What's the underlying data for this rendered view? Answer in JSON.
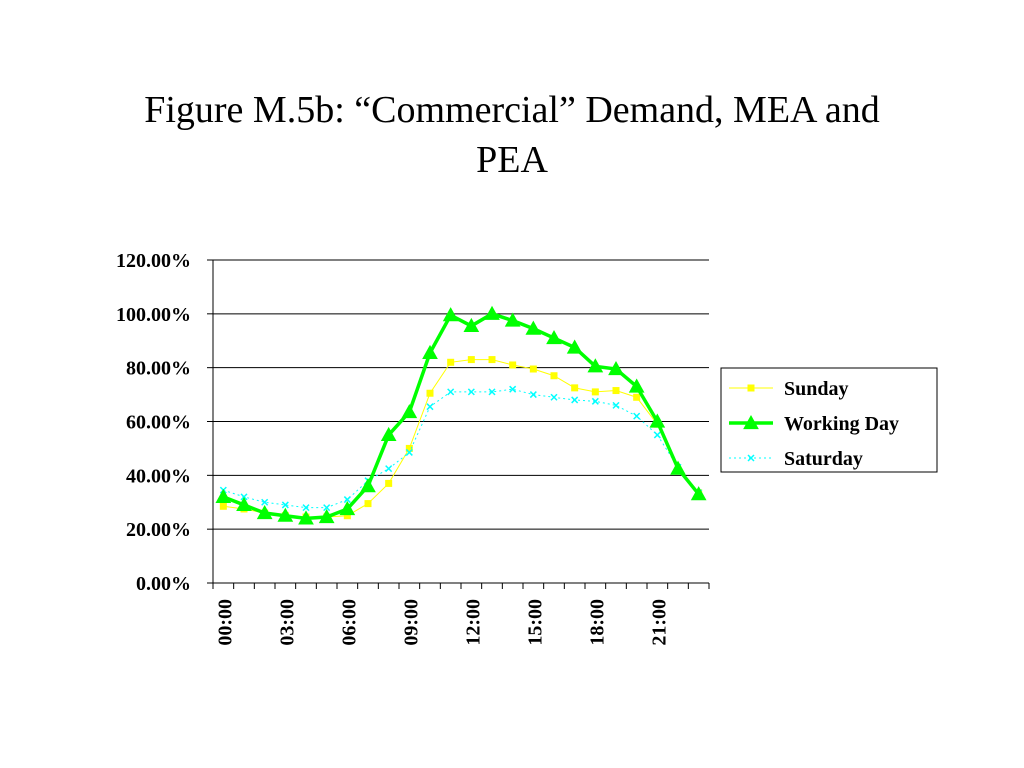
{
  "slide": {
    "title_line1": "Figure M.5b: “Commercial” Demand, MEA and",
    "title_line2": "PEA"
  },
  "chart_data": {
    "type": "line",
    "title": "Figure M.5b: “Commercial” Demand, MEA and PEA",
    "xlabel": "",
    "ylabel": "",
    "ylim": [
      0,
      120
    ],
    "y_ticks": [
      0,
      20,
      40,
      60,
      80,
      100,
      120
    ],
    "y_tick_labels": [
      "0.00%",
      "20.00%",
      "40.00%",
      "60.00%",
      "80.00%",
      "100.00%",
      "120.00%"
    ],
    "x": [
      0,
      1,
      2,
      3,
      4,
      5,
      6,
      7,
      8,
      9,
      10,
      11,
      12,
      13,
      14,
      15,
      16,
      17,
      18,
      19,
      20,
      21,
      22,
      23
    ],
    "x_tick_labels": [
      "00:00",
      "03:00",
      "06:00",
      "09:00",
      "12:00",
      "15:00",
      "18:00",
      "21:00"
    ],
    "x_tick_label_positions": [
      0,
      3,
      6,
      9,
      12,
      15,
      18,
      21
    ],
    "grid": "horizontal",
    "legend_position": "right",
    "series": [
      {
        "name": "Sunday",
        "color": "#FFFF00",
        "marker": "square",
        "values": [
          28.5,
          27.5,
          26.0,
          25.0,
          24.5,
          24.5,
          25.0,
          29.5,
          37.0,
          50.0,
          70.5,
          82.0,
          83.0,
          83.0,
          81.0,
          79.5,
          77.0,
          72.5,
          71.0,
          71.5,
          69.0,
          59.0,
          42.0,
          33.5
        ]
      },
      {
        "name": "Working Day",
        "color": "#00FF00",
        "marker": "triangle",
        "values": [
          32.0,
          29.0,
          26.0,
          25.0,
          24.0,
          24.5,
          27.5,
          36.0,
          55.0,
          63.5,
          85.5,
          99.5,
          95.5,
          100.0,
          97.5,
          94.5,
          91.0,
          87.5,
          80.5,
          79.5,
          73.0,
          60.0,
          42.5,
          33.0
        ]
      },
      {
        "name": "Saturday",
        "color": "#00FFFF",
        "marker": "x",
        "values": [
          34.5,
          32.0,
          30.0,
          29.0,
          28.0,
          28.0,
          31.0,
          38.0,
          42.5,
          48.5,
          65.5,
          71.0,
          71.0,
          71.0,
          72.0,
          70.0,
          69.0,
          68.0,
          67.5,
          66.0,
          62.0,
          55.0,
          43.0,
          33.5
        ]
      }
    ]
  }
}
